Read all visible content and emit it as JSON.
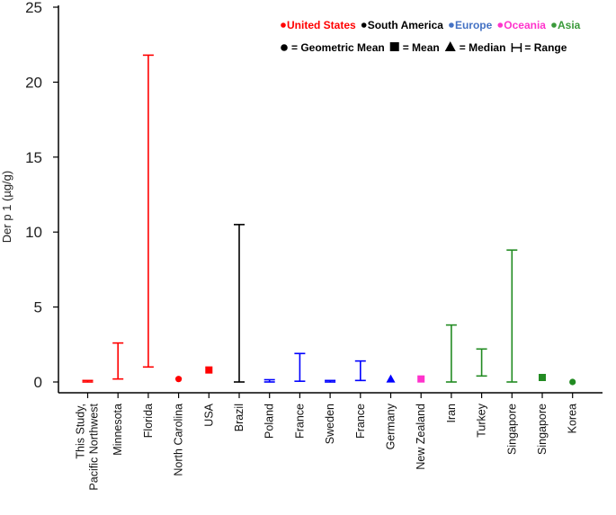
{
  "chart_data": {
    "type": "range",
    "ylabel": "Der p 1 (µg/g)",
    "ylim": [
      0,
      25
    ],
    "yticks": [
      0,
      5,
      10,
      15,
      20,
      25
    ],
    "grid": false,
    "legend_placement": "top-right",
    "region_legend": [
      {
        "label": "United States",
        "color": "#ff0000"
      },
      {
        "label": "South America",
        "color": "#000000"
      },
      {
        "label": "Europe",
        "color": "#4472c4"
      },
      {
        "label": "Oceania",
        "color": "#ff33cc"
      },
      {
        "label": "Asia",
        "color": "#3a9a3a"
      }
    ],
    "marker_legend": [
      {
        "symbol": "circle",
        "label": "= Geometric Mean"
      },
      {
        "symbol": "square",
        "label": "= Mean"
      },
      {
        "symbol": "triangle",
        "label": "= Median"
      },
      {
        "symbol": "range",
        "label": "= Range"
      }
    ],
    "points": [
      {
        "category": [
          "This Study,",
          "Pacific Northwest"
        ],
        "region": "United States",
        "color": "#ff0000",
        "kind": "range",
        "low": 0.0,
        "high": 0.1
      },
      {
        "category": [
          "Minnesota"
        ],
        "region": "United States",
        "color": "#ff0000",
        "kind": "range",
        "low": 0.2,
        "high": 2.6
      },
      {
        "category": [
          "Florida"
        ],
        "region": "United States",
        "color": "#ff0000",
        "kind": "range",
        "low": 1.0,
        "high": 21.8
      },
      {
        "category": [
          "North Carolina"
        ],
        "region": "United States",
        "color": "#ff0000",
        "kind": "circle",
        "value": 0.2
      },
      {
        "category": [
          "USA"
        ],
        "region": "United States",
        "color": "#ff0000",
        "kind": "square",
        "value": 0.8
      },
      {
        "category": [
          "Brazil"
        ],
        "region": "South America",
        "color": "#000000",
        "kind": "range",
        "low": 0.0,
        "high": 10.5
      },
      {
        "category": [
          "Poland"
        ],
        "region": "Europe",
        "color": "#0000ff",
        "kind": "range",
        "low": 0.0,
        "high": 0.15
      },
      {
        "category": [
          "France"
        ],
        "region": "Europe",
        "color": "#0000ff",
        "kind": "range",
        "low": 0.05,
        "high": 1.9
      },
      {
        "category": [
          "Sweden"
        ],
        "region": "Europe",
        "color": "#0000ff",
        "kind": "range",
        "low": 0.0,
        "high": 0.1
      },
      {
        "category": [
          "France"
        ],
        "region": "Europe",
        "color": "#0000ff",
        "kind": "range",
        "low": 0.1,
        "high": 1.4
      },
      {
        "category": [
          "Germany"
        ],
        "region": "Europe",
        "color": "#0000ff",
        "kind": "triangle",
        "value": 0.2
      },
      {
        "category": [
          "New Zealand"
        ],
        "region": "Oceania",
        "color": "#ff33cc",
        "kind": "square",
        "value": 0.2
      },
      {
        "category": [
          "Iran"
        ],
        "region": "Asia",
        "color": "#228b22",
        "kind": "range",
        "low": 0.0,
        "high": 3.8
      },
      {
        "category": [
          "Turkey"
        ],
        "region": "Asia",
        "color": "#228b22",
        "kind": "range",
        "low": 0.4,
        "high": 2.2
      },
      {
        "category": [
          "Singapore"
        ],
        "region": "Asia",
        "color": "#228b22",
        "kind": "range",
        "low": 0.0,
        "high": 8.8
      },
      {
        "category": [
          "Singapore"
        ],
        "region": "Asia",
        "color": "#228b22",
        "kind": "square",
        "value": 0.3
      },
      {
        "category": [
          "Korea"
        ],
        "region": "Asia",
        "color": "#228b22",
        "kind": "circle",
        "value": 0.0
      }
    ]
  }
}
